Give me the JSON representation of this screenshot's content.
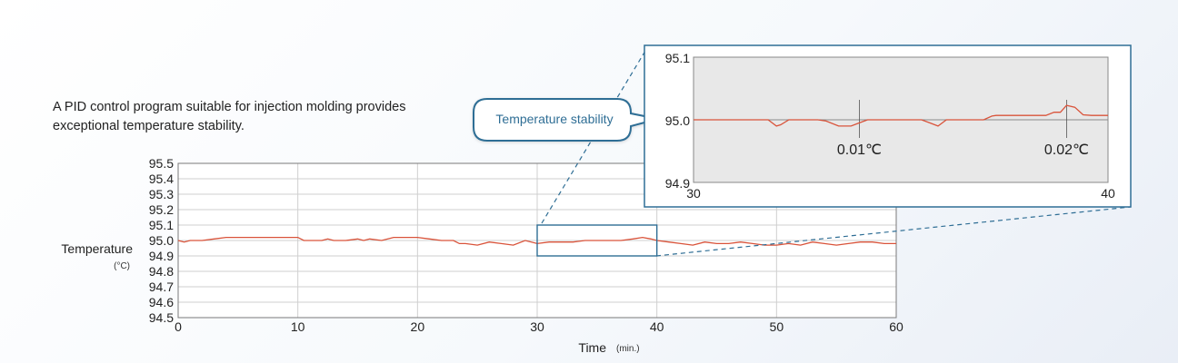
{
  "description": "A PID control program suitable for injection molding provides exceptional temperature stability.",
  "callout": {
    "label": "Temperature stability"
  },
  "chart_data": [
    {
      "type": "line",
      "ylabel": "Temperature",
      "yunit": "(°C)",
      "xlabel": "Time",
      "xunit": "(min.)",
      "xlim": [
        0,
        60
      ],
      "ylim": [
        94.5,
        95.5
      ],
      "xticks": [
        0,
        10,
        20,
        30,
        40,
        50,
        60
      ],
      "yticks": [
        95.5,
        95.4,
        95.3,
        95.2,
        95.1,
        95.0,
        94.9,
        94.8,
        94.7,
        94.6,
        94.5
      ],
      "grid": true,
      "line_color": "#d9533a",
      "highlight_range": {
        "x": [
          30,
          40
        ],
        "y": [
          94.9,
          95.1
        ],
        "color": "#2f6e95"
      },
      "x": [
        0,
        0.5,
        1,
        2,
        3,
        4,
        5,
        6,
        8,
        10,
        10.5,
        11,
        12,
        12.5,
        13,
        14,
        15,
        15.5,
        16,
        17,
        18,
        19,
        20,
        21,
        22,
        23,
        23.5,
        24,
        25,
        26,
        27,
        28,
        29,
        30,
        31,
        32,
        33,
        34,
        35,
        36,
        37,
        38,
        38.8,
        39.5,
        40,
        41,
        42,
        43,
        44,
        45,
        46,
        47,
        48,
        49,
        50,
        51,
        52,
        53,
        54,
        55,
        56,
        57,
        58,
        59,
        60
      ],
      "y": [
        95.0,
        94.99,
        95.0,
        95.0,
        95.01,
        95.02,
        95.02,
        95.02,
        95.02,
        95.02,
        95.0,
        95.0,
        95.0,
        95.01,
        95.0,
        95.0,
        95.01,
        95.0,
        95.01,
        95.0,
        95.02,
        95.02,
        95.02,
        95.01,
        95.0,
        95.0,
        94.98,
        94.98,
        94.97,
        94.99,
        94.98,
        94.97,
        95.0,
        94.98,
        94.99,
        94.99,
        94.99,
        95.0,
        95.0,
        95.0,
        95.0,
        95.01,
        95.02,
        95.01,
        95.0,
        94.99,
        94.98,
        94.97,
        94.99,
        94.98,
        94.98,
        94.99,
        94.98,
        94.97,
        94.97,
        94.98,
        94.97,
        94.99,
        94.98,
        94.97,
        94.98,
        94.99,
        94.99,
        94.98,
        94.98
      ]
    },
    {
      "type": "line",
      "xlim": [
        30,
        40
      ],
      "ylim": [
        94.9,
        95.1
      ],
      "xticks": [
        30,
        40
      ],
      "yticks": [
        95.1,
        95.0,
        94.9
      ],
      "grid": false,
      "background": "#e8e8e8",
      "line_color": "#d9533a",
      "x": [
        30,
        31.8,
        32.0,
        32.1,
        32.3,
        33.0,
        33.2,
        33.5,
        33.8,
        34.0,
        34.2,
        34.4,
        34.6,
        35.0,
        35.5,
        35.7,
        35.9,
        36.1,
        37.0,
        37.2,
        37.3,
        37.5,
        38.0,
        38.5,
        38.7,
        38.85,
        39.0,
        39.2,
        39.4,
        39.6,
        40.0
      ],
      "y": [
        95.0,
        95.0,
        94.99,
        94.992,
        95.0,
        95.0,
        94.998,
        94.99,
        94.99,
        94.995,
        95.0,
        95.0,
        95.0,
        95.0,
        95.0,
        94.995,
        94.99,
        95.0,
        95.0,
        95.006,
        95.007,
        95.007,
        95.007,
        95.007,
        95.012,
        95.012,
        95.023,
        95.02,
        95.008,
        95.007,
        95.007
      ],
      "annotations": [
        {
          "x": 34.0,
          "label": "0.01℃"
        },
        {
          "x": 39.0,
          "label": "0.02℃"
        }
      ]
    }
  ]
}
